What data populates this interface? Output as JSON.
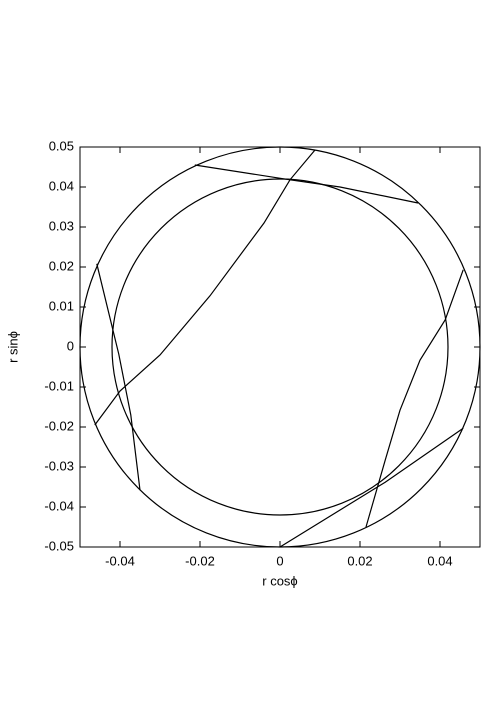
{
  "chart_data": {
    "type": "line",
    "x_label": "r cosϕ",
    "y_label": "r sinϕ",
    "xlim": [
      -0.05,
      0.05
    ],
    "ylim": [
      -0.05,
      0.05
    ],
    "xticks": [
      -0.04,
      -0.02,
      0,
      0.02,
      0.04
    ],
    "yticks": [
      -0.05,
      -0.04,
      -0.03,
      -0.02,
      -0.01,
      0,
      0.01,
      0.02,
      0.03,
      0.04,
      0.05
    ],
    "circles": [
      {
        "radius": 0.05,
        "color": "#000000"
      },
      {
        "radius": 0.042,
        "color": "#000000"
      }
    ],
    "series": [
      {
        "color": "#000000",
        "x": [
          0,
          0.0263,
          0.0458,
          null,
          0.0215,
          0.0263,
          0.03,
          0.035,
          0.0413,
          0.0458,
          null,
          -0.0213,
          0.0025,
          0.015,
          0.0345,
          null,
          0.0088,
          0.0025,
          -0.004,
          -0.0175,
          -0.03,
          -0.04,
          -0.0463,
          null,
          -0.0458,
          -0.0403,
          -0.0373,
          -0.035
        ],
        "y": [
          -0.05,
          -0.0338,
          -0.0203,
          null,
          -0.045,
          -0.0283,
          -0.0158,
          -0.0033,
          0.0068,
          0.0193,
          null,
          0.0455,
          0.0418,
          0.04,
          0.036,
          null,
          0.0493,
          0.0418,
          0.031,
          0.0128,
          -0.002,
          -0.011,
          -0.0195,
          null,
          0.0208,
          -0.0018,
          -0.017,
          -0.0358
        ]
      }
    ]
  }
}
